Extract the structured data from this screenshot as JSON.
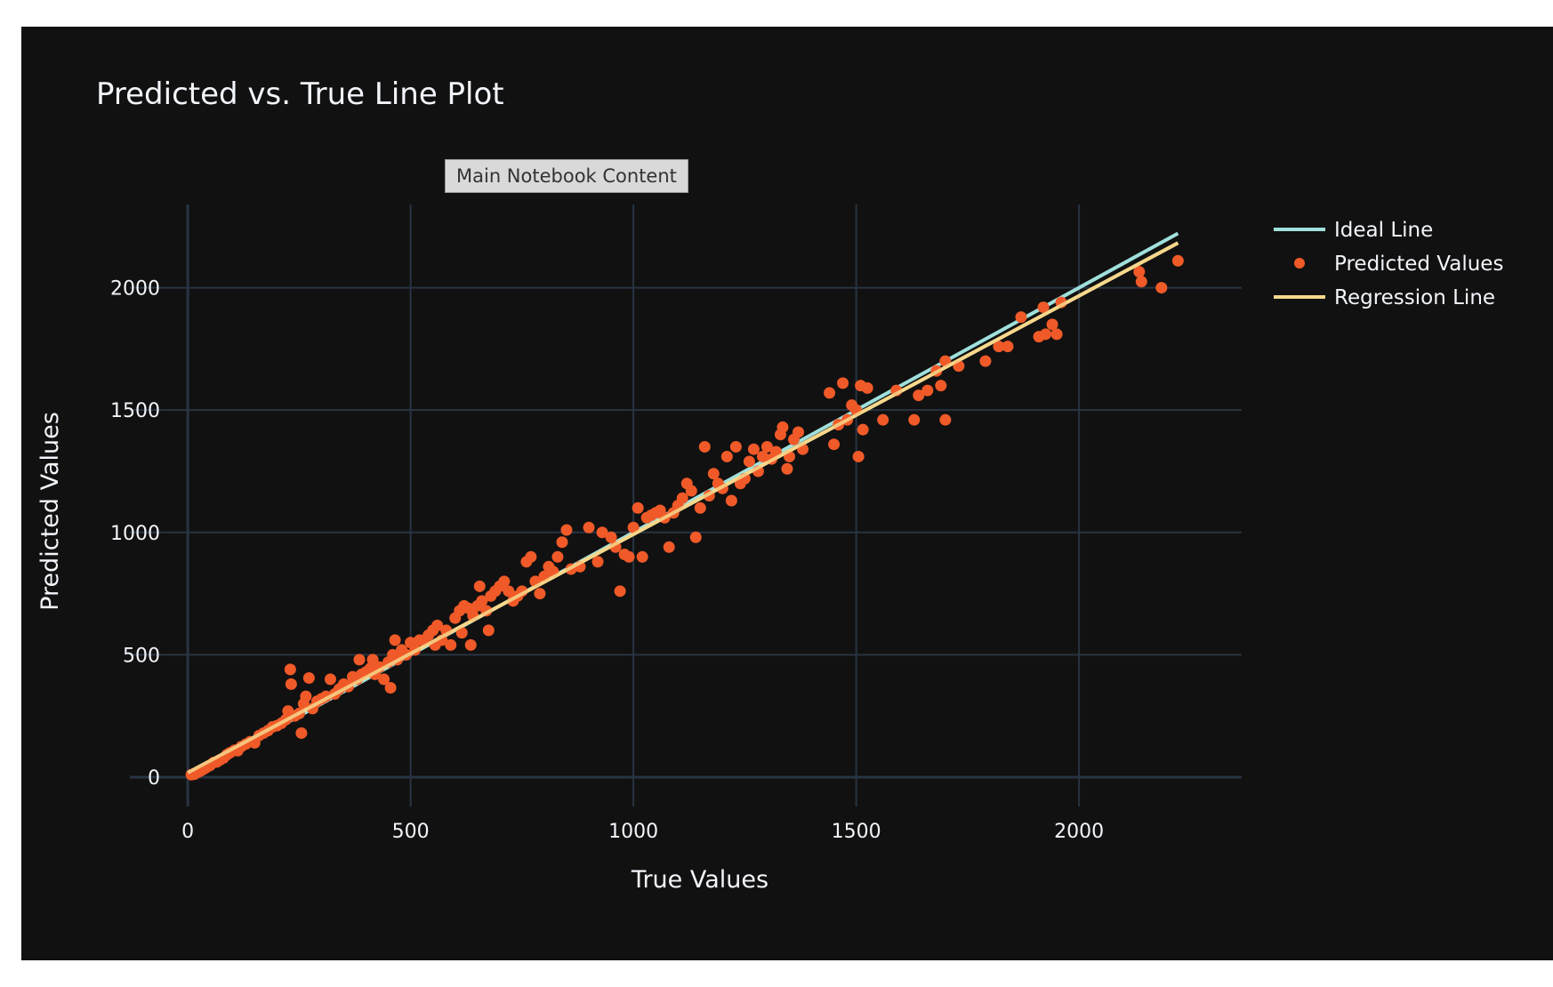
{
  "tooltip": {
    "label": "Main Notebook Content"
  },
  "colors": {
    "background": "#111111",
    "grid": "#283442",
    "text": "#f2f5fa",
    "ideal": "#a0e0dc",
    "regression": "#f7d88c",
    "points": "#f05a28"
  },
  "chart_data": {
    "type": "scatter",
    "title": "Predicted vs. True Line Plot",
    "xlabel": "True Values",
    "ylabel": "Predicted Values",
    "xlim": [
      -130,
      2365
    ],
    "ylim": [
      -120,
      2340
    ],
    "xticks": [
      0,
      500,
      1000,
      1500,
      2000
    ],
    "yticks": [
      0,
      500,
      1000,
      1500,
      2000
    ],
    "grid": true,
    "legend": {
      "placement": "top-right",
      "entries": [
        "Ideal Line",
        "Predicted Values",
        "Regression Line"
      ]
    },
    "series": [
      {
        "name": "Ideal Line",
        "mode": "lines",
        "x": [
          0,
          2222
        ],
        "y": [
          0,
          2222
        ]
      },
      {
        "name": "Predicted Values",
        "mode": "markers",
        "points": [
          [
            8,
            10
          ],
          [
            15,
            12
          ],
          [
            22,
            20
          ],
          [
            28,
            25
          ],
          [
            35,
            32
          ],
          [
            42,
            40
          ],
          [
            50,
            48
          ],
          [
            58,
            60
          ],
          [
            65,
            62
          ],
          [
            72,
            70
          ],
          [
            80,
            78
          ],
          [
            88,
            92
          ],
          [
            95,
            100
          ],
          [
            105,
            110
          ],
          [
            112,
            108
          ],
          [
            120,
            125
          ],
          [
            130,
            135
          ],
          [
            140,
            145
          ],
          [
            150,
            140
          ],
          [
            160,
            170
          ],
          [
            170,
            180
          ],
          [
            180,
            190
          ],
          [
            190,
            205
          ],
          [
            200,
            210
          ],
          [
            210,
            220
          ],
          [
            220,
            235
          ],
          [
            225,
            270
          ],
          [
            230,
            440
          ],
          [
            232,
            380
          ],
          [
            240,
            250
          ],
          [
            250,
            260
          ],
          [
            255,
            180
          ],
          [
            260,
            300
          ],
          [
            265,
            330
          ],
          [
            272,
            405
          ],
          [
            280,
            280
          ],
          [
            290,
            310
          ],
          [
            300,
            320
          ],
          [
            310,
            330
          ],
          [
            320,
            400
          ],
          [
            330,
            340
          ],
          [
            340,
            360
          ],
          [
            350,
            380
          ],
          [
            360,
            370
          ],
          [
            370,
            410
          ],
          [
            380,
            400
          ],
          [
            385,
            480
          ],
          [
            390,
            420
          ],
          [
            400,
            430
          ],
          [
            410,
            445
          ],
          [
            415,
            480
          ],
          [
            420,
            420
          ],
          [
            430,
            450
          ],
          [
            440,
            400
          ],
          [
            450,
            470
          ],
          [
            455,
            365
          ],
          [
            460,
            500
          ],
          [
            465,
            560
          ],
          [
            470,
            480
          ],
          [
            480,
            520
          ],
          [
            490,
            500
          ],
          [
            500,
            550
          ],
          [
            510,
            520
          ],
          [
            520,
            560
          ],
          [
            530,
            560
          ],
          [
            540,
            580
          ],
          [
            550,
            600
          ],
          [
            555,
            540
          ],
          [
            560,
            620
          ],
          [
            570,
            560
          ],
          [
            580,
            600
          ],
          [
            590,
            540
          ],
          [
            600,
            650
          ],
          [
            610,
            680
          ],
          [
            615,
            590
          ],
          [
            620,
            700
          ],
          [
            630,
            690
          ],
          [
            635,
            540
          ],
          [
            640,
            660
          ],
          [
            650,
            700
          ],
          [
            655,
            780
          ],
          [
            660,
            720
          ],
          [
            670,
            680
          ],
          [
            675,
            600
          ],
          [
            680,
            740
          ],
          [
            690,
            760
          ],
          [
            700,
            780
          ],
          [
            710,
            800
          ],
          [
            720,
            760
          ],
          [
            730,
            720
          ],
          [
            740,
            740
          ],
          [
            750,
            760
          ],
          [
            760,
            880
          ],
          [
            770,
            900
          ],
          [
            780,
            800
          ],
          [
            790,
            750
          ],
          [
            800,
            820
          ],
          [
            810,
            860
          ],
          [
            820,
            840
          ],
          [
            830,
            900
          ],
          [
            840,
            960
          ],
          [
            850,
            1010
          ],
          [
            860,
            850
          ],
          [
            880,
            860
          ],
          [
            900,
            1020
          ],
          [
            920,
            880
          ],
          [
            930,
            1000
          ],
          [
            950,
            980
          ],
          [
            960,
            940
          ],
          [
            970,
            760
          ],
          [
            980,
            910
          ],
          [
            990,
            900
          ],
          [
            1000,
            1020
          ],
          [
            1010,
            1100
          ],
          [
            1020,
            900
          ],
          [
            1030,
            1060
          ],
          [
            1040,
            1070
          ],
          [
            1050,
            1080
          ],
          [
            1060,
            1090
          ],
          [
            1070,
            1060
          ],
          [
            1080,
            940
          ],
          [
            1090,
            1080
          ],
          [
            1100,
            1110
          ],
          [
            1110,
            1140
          ],
          [
            1120,
            1200
          ],
          [
            1130,
            1170
          ],
          [
            1140,
            980
          ],
          [
            1150,
            1100
          ],
          [
            1160,
            1350
          ],
          [
            1170,
            1150
          ],
          [
            1180,
            1240
          ],
          [
            1190,
            1200
          ],
          [
            1200,
            1180
          ],
          [
            1210,
            1310
          ],
          [
            1220,
            1130
          ],
          [
            1230,
            1350
          ],
          [
            1240,
            1200
          ],
          [
            1250,
            1220
          ],
          [
            1260,
            1290
          ],
          [
            1270,
            1340
          ],
          [
            1280,
            1250
          ],
          [
            1290,
            1310
          ],
          [
            1300,
            1350
          ],
          [
            1310,
            1300
          ],
          [
            1320,
            1330
          ],
          [
            1330,
            1400
          ],
          [
            1335,
            1430
          ],
          [
            1345,
            1260
          ],
          [
            1350,
            1310
          ],
          [
            1360,
            1380
          ],
          [
            1370,
            1410
          ],
          [
            1380,
            1340
          ],
          [
            1440,
            1570
          ],
          [
            1450,
            1360
          ],
          [
            1460,
            1440
          ],
          [
            1470,
            1610
          ],
          [
            1480,
            1460
          ],
          [
            1490,
            1520
          ],
          [
            1500,
            1500
          ],
          [
            1505,
            1310
          ],
          [
            1510,
            1600
          ],
          [
            1515,
            1420
          ],
          [
            1525,
            1590
          ],
          [
            1560,
            1460
          ],
          [
            1590,
            1580
          ],
          [
            1630,
            1460
          ],
          [
            1640,
            1560
          ],
          [
            1660,
            1580
          ],
          [
            1680,
            1660
          ],
          [
            1690,
            1600
          ],
          [
            1700,
            1460
          ],
          [
            1700,
            1700
          ],
          [
            1730,
            1680
          ],
          [
            1790,
            1700
          ],
          [
            1820,
            1760
          ],
          [
            1840,
            1760
          ],
          [
            1870,
            1880
          ],
          [
            1910,
            1800
          ],
          [
            1920,
            1920
          ],
          [
            1925,
            1810
          ],
          [
            1940,
            1850
          ],
          [
            1950,
            1810
          ],
          [
            1960,
            1940
          ],
          [
            2135,
            2065
          ],
          [
            2140,
            2025
          ],
          [
            2185,
            2000
          ],
          [
            2222,
            2110
          ]
        ]
      },
      {
        "name": "Regression Line",
        "mode": "lines",
        "x": [
          0,
          2222
        ],
        "y": [
          18,
          2183
        ]
      }
    ]
  }
}
